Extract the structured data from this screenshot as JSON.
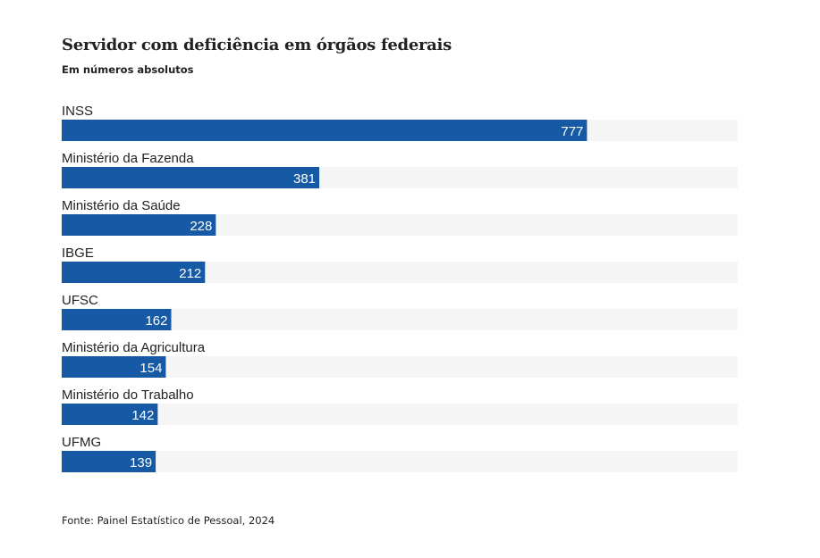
{
  "title": "Servidor com deficiência em órgãos federais",
  "subtitle": "Em números absolutos",
  "source": "Fonte: Painel Estatístico de Pessoal, 2024",
  "colors": {
    "bar": "#1659a4",
    "track": "#f5f5f5",
    "value_text": "#ffffff",
    "label_text": "#222222"
  },
  "chart_data": {
    "type": "bar",
    "orientation": "horizontal",
    "categories": [
      "INSS",
      "Ministério da Fazenda",
      "Ministério da Saúde",
      "IBGE",
      "UFSC",
      "Ministério da Agricultura",
      "Ministério do Trabalho",
      "UFMG"
    ],
    "values": [
      777,
      381,
      228,
      212,
      162,
      154,
      142,
      139
    ],
    "xlim": [
      0,
      1000
    ],
    "grid": false,
    "legend": "none"
  }
}
